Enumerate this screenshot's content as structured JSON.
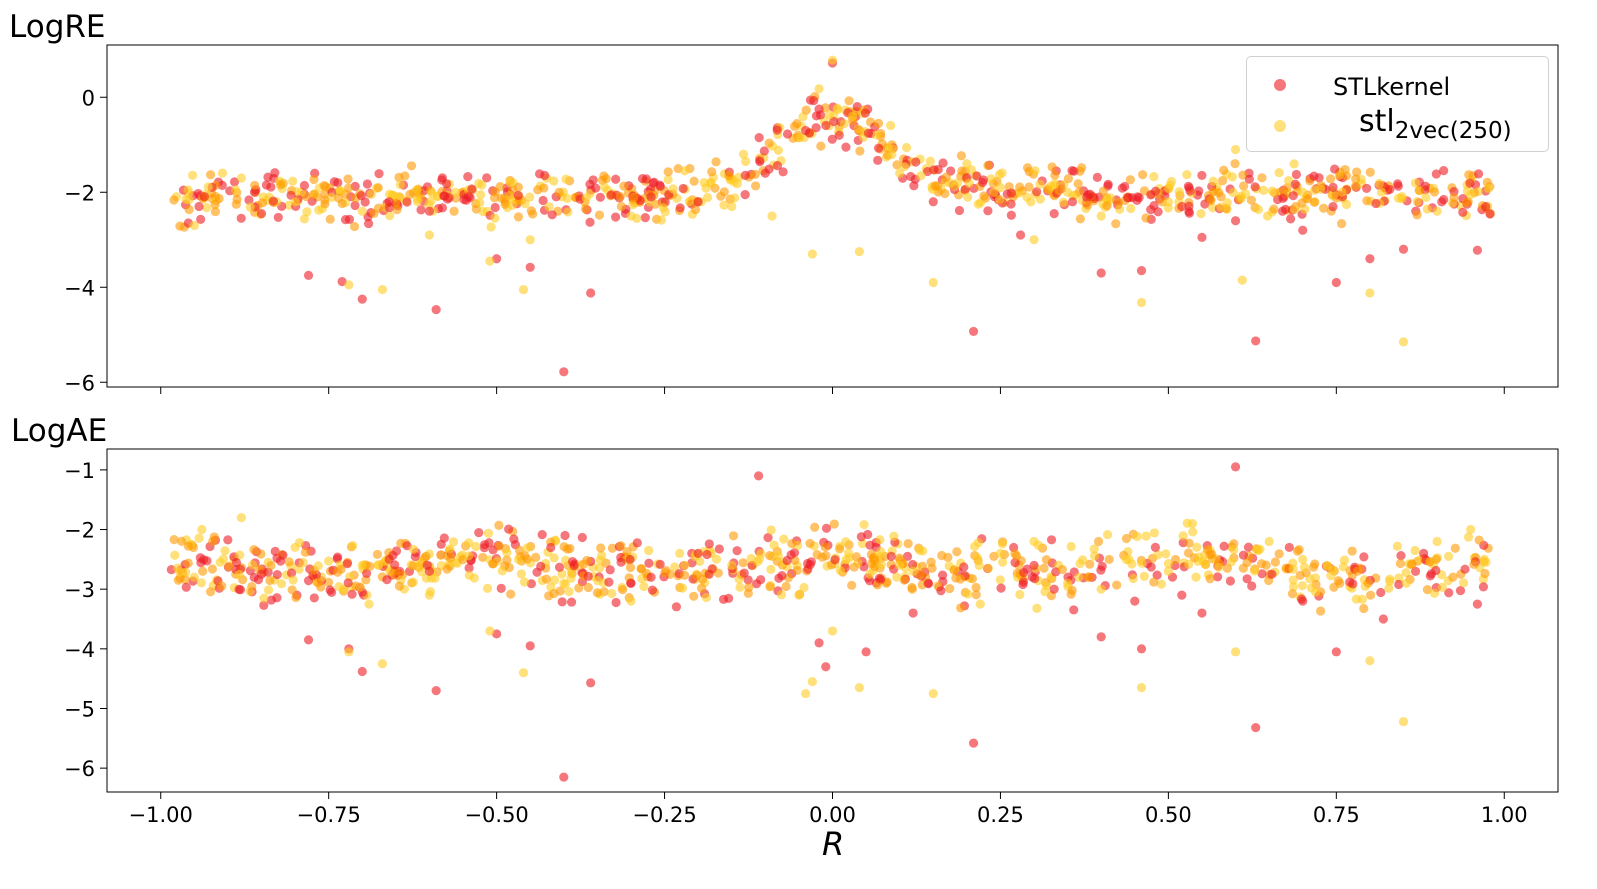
{
  "chart_data": [
    {
      "type": "scatter",
      "title": "LogRE",
      "xlabel": "",
      "ylabel": "",
      "xlim": [
        -1.08,
        1.08
      ],
      "ylim": [
        -6.1,
        1.1
      ],
      "yticks": [
        0,
        -2,
        -4,
        -6
      ],
      "yticklabels": [
        "0",
        "−2",
        "−4",
        "−6"
      ],
      "x_ticklabels_shown": false,
      "legend": "top-right",
      "series": [
        {
          "name": "STLkernel",
          "color": "#ee1c25",
          "alpha": 0.6,
          "points": [
            [
              -0.4,
              -5.78
            ],
            [
              -0.59,
              -4.47
            ],
            [
              -0.36,
              -4.12
            ],
            [
              0.21,
              -4.93
            ],
            [
              0.63,
              -5.13
            ],
            [
              -0.7,
              -4.25
            ],
            [
              -0.5,
              -3.4
            ],
            [
              -0.45,
              -3.58
            ],
            [
              -0.73,
              -3.88
            ],
            [
              0.46,
              -3.65
            ],
            [
              0.75,
              -3.9
            ],
            [
              -0.78,
              -3.75
            ],
            [
              0.4,
              -3.7
            ],
            [
              0.85,
              -3.2
            ],
            [
              0.96,
              -3.22
            ],
            [
              0.0,
              0.72
            ],
            [
              -0.02,
              -0.25
            ],
            [
              0.01,
              -0.8
            ],
            [
              0.02,
              -1.05
            ],
            [
              -0.04,
              -0.7
            ],
            [
              0.55,
              -2.95
            ],
            [
              0.28,
              -2.9
            ],
            [
              0.33,
              -2.45
            ],
            [
              -0.27,
              -2.1
            ],
            [
              0.7,
              -2.8
            ],
            [
              -0.6,
              -2.4
            ],
            [
              0.6,
              -2.6
            ],
            [
              -0.1,
              -1.6
            ],
            [
              0.15,
              -2.2
            ],
            [
              -0.85,
              -2.45
            ],
            [
              0.8,
              -3.4
            ],
            [
              0.67,
              -2.4
            ],
            [
              -0.2,
              -2.2
            ],
            [
              0.52,
              -2.3
            ],
            [
              -0.66,
              -2.2
            ]
          ]
        },
        {
          "name": "stl2vec(250)",
          "label_main": "stl",
          "label_sub": "2vec(250)",
          "color": "#ffcc22",
          "alpha": 0.6,
          "points": [
            [
              0.85,
              -5.15
            ],
            [
              0.46,
              -4.32
            ],
            [
              0.15,
              -3.9
            ],
            [
              -0.46,
              -4.05
            ],
            [
              -0.72,
              -3.95
            ],
            [
              -0.67,
              -4.05
            ],
            [
              0.0,
              0.78
            ],
            [
              -0.02,
              0.18
            ],
            [
              0.03,
              -0.4
            ],
            [
              0.04,
              -3.25
            ],
            [
              -0.09,
              -2.5
            ],
            [
              -0.03,
              -3.3
            ],
            [
              0.3,
              -3.0
            ],
            [
              0.61,
              -3.85
            ],
            [
              0.8,
              -4.12
            ],
            [
              -0.6,
              -2.9
            ],
            [
              -0.51,
              -3.45
            ],
            [
              0.6,
              -1.1
            ],
            [
              0.25,
              -1.9
            ],
            [
              -0.3,
              -2.5
            ],
            [
              0.4,
              -2.5
            ],
            [
              -0.15,
              -2.3
            ],
            [
              0.7,
              -2.0
            ],
            [
              -0.8,
              -2.2
            ],
            [
              0.9,
              -2.4
            ],
            [
              0.1,
              -1.6
            ],
            [
              -0.95,
              -2.7
            ],
            [
              0.95,
              -2.05
            ],
            [
              -0.45,
              -3.0
            ],
            [
              0.2,
              -1.4
            ],
            [
              -0.22,
              -1.55
            ],
            [
              0.5,
              -2.2
            ],
            [
              -0.7,
              -2.4
            ],
            [
              0.35,
              -2.0
            ],
            [
              -0.88,
              -1.7
            ]
          ]
        }
      ]
    },
    {
      "type": "scatter",
      "title": "LogAE",
      "xlabel": "R",
      "ylabel": "",
      "xlim": [
        -1.08,
        1.08
      ],
      "ylim": [
        -6.4,
        -0.65
      ],
      "yticks": [
        -1,
        -2,
        -3,
        -4,
        -5,
        -6
      ],
      "yticklabels": [
        "−1",
        "−2",
        "−3",
        "−4",
        "−5",
        "−6"
      ],
      "xticks": [
        -1.0,
        -0.75,
        -0.5,
        -0.25,
        0.0,
        0.25,
        0.5,
        0.75,
        1.0
      ],
      "xticklabels": [
        "−1.00",
        "−0.75",
        "−0.50",
        "−0.25",
        "0.00",
        "0.25",
        "0.50",
        "0.75",
        "1.00"
      ],
      "series": [
        {
          "name": "STLkernel",
          "color": "#ee1c25",
          "alpha": 0.6,
          "points": [
            [
              -0.4,
              -6.15
            ],
            [
              -0.59,
              -4.7
            ],
            [
              -0.36,
              -4.57
            ],
            [
              0.21,
              -5.58
            ],
            [
              0.63,
              -5.32
            ],
            [
              -0.7,
              -4.38
            ],
            [
              -0.45,
              -3.95
            ],
            [
              -0.5,
              -3.75
            ],
            [
              -0.72,
              -4.0
            ],
            [
              0.46,
              -4.0
            ],
            [
              0.75,
              -4.05
            ],
            [
              -0.78,
              -3.85
            ],
            [
              0.4,
              -3.8
            ],
            [
              0.82,
              -3.5
            ],
            [
              0.96,
              -3.25
            ],
            [
              -0.11,
              -1.1
            ],
            [
              0.6,
              -0.95
            ],
            [
              -0.02,
              -3.9
            ],
            [
              -0.01,
              -4.3
            ],
            [
              0.05,
              -4.05
            ],
            [
              0.55,
              -3.4
            ],
            [
              0.3,
              -2.6
            ],
            [
              -0.27,
              -2.8
            ],
            [
              0.7,
              -3.2
            ],
            [
              -0.6,
              -2.7
            ],
            [
              0.12,
              -3.4
            ],
            [
              -0.85,
              -2.75
            ],
            [
              0.33,
              -3.0
            ],
            [
              -0.2,
              -2.4
            ],
            [
              0.52,
              -3.1
            ],
            [
              0.68,
              -2.3
            ],
            [
              -0.66,
              -2.5
            ],
            [
              0.45,
              -3.2
            ],
            [
              -0.3,
              -2.9
            ],
            [
              0.88,
              -2.4
            ]
          ]
        },
        {
          "name": "stl2vec(250)",
          "label_main": "stl",
          "label_sub": "2vec(250)",
          "color": "#ffcc22",
          "alpha": 0.6,
          "points": [
            [
              0.85,
              -5.22
            ],
            [
              0.46,
              -4.65
            ],
            [
              0.15,
              -4.75
            ],
            [
              -0.46,
              -4.4
            ],
            [
              -0.72,
              -4.05
            ],
            [
              -0.67,
              -4.25
            ],
            [
              -0.04,
              -4.75
            ],
            [
              0.04,
              -4.65
            ],
            [
              -0.03,
              -4.55
            ],
            [
              0.6,
              -4.05
            ],
            [
              0.8,
              -4.2
            ],
            [
              0.0,
              -3.7
            ],
            [
              0.22,
              -3.25
            ],
            [
              -0.6,
              -3.1
            ],
            [
              -0.51,
              -3.7
            ],
            [
              0.4,
              -3.0
            ],
            [
              -0.3,
              -3.2
            ],
            [
              0.3,
              -2.2
            ],
            [
              0.7,
              -2.5
            ],
            [
              -0.8,
              -2.3
            ],
            [
              0.9,
              -2.2
            ],
            [
              0.1,
              -2.6
            ],
            [
              -0.95,
              -2.8
            ],
            [
              0.95,
              -2.0
            ],
            [
              -0.15,
              -2.6
            ],
            [
              0.5,
              -2.7
            ],
            [
              -0.7,
              -2.6
            ],
            [
              0.35,
              -2.9
            ],
            [
              -0.88,
              -1.8
            ],
            [
              0.25,
              -2.4
            ],
            [
              -0.22,
              -2.6
            ],
            [
              0.65,
              -2.2
            ],
            [
              -0.4,
              -2.9
            ],
            [
              0.12,
              -2.7
            ],
            [
              -0.05,
              -3.1
            ]
          ]
        }
      ]
    }
  ]
}
